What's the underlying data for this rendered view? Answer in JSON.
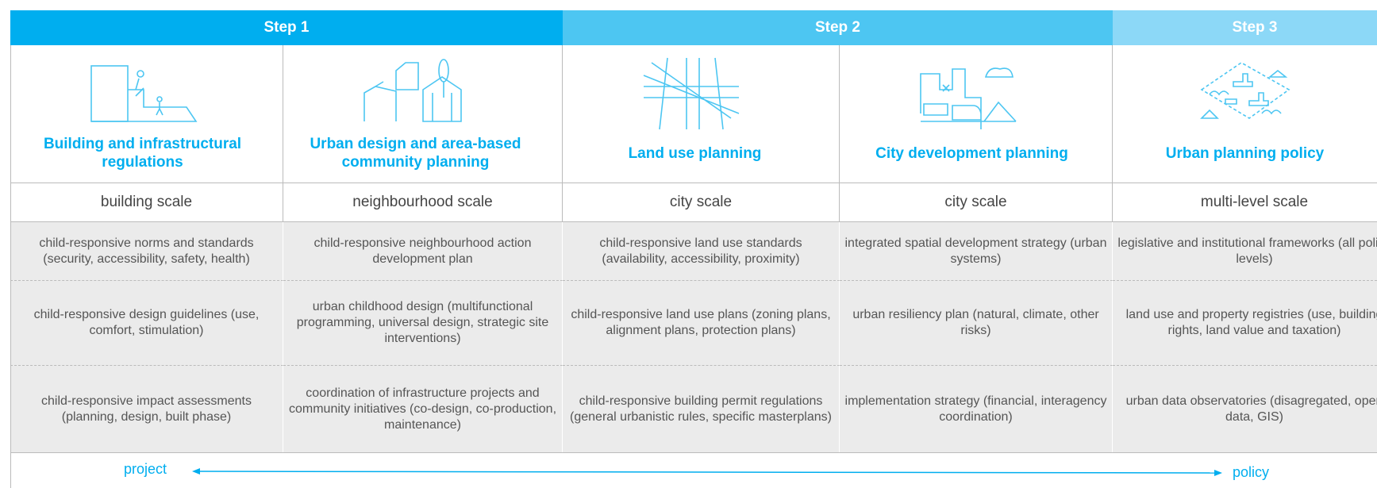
{
  "steps": [
    {
      "label": "Step 1",
      "color": "#00aeef"
    },
    {
      "label": "Step 2",
      "color": "#4dc6f2"
    },
    {
      "label": "Step 3",
      "color": "#8cd8f7"
    }
  ],
  "columns": [
    {
      "step": 0,
      "title": "Building and infrastructural regulations",
      "scale": "building scale",
      "items": [
        "child-responsive norms and standards (security, accessibility, safety, health)",
        "child-responsive design guidelines (use, comfort, stimulation)",
        "child-responsive impact assessments (planning, design, built phase)"
      ]
    },
    {
      "step": 0,
      "title": "Urban design and area-based community planning",
      "scale": "neighbourhood scale",
      "items": [
        "child-responsive neighbourhood action development plan",
        "urban childhood design (multifunctional programming, universal design, strategic site interventions)",
        "coordination of infrastructure projects and community initiatives (co-design, co-production, maintenance)"
      ]
    },
    {
      "step": 1,
      "title": "Land use planning",
      "scale": "city scale",
      "items": [
        "child-responsive land use standards (availability, accessibility, proximity)",
        "child-responsive land use plans (zoning plans, alignment plans, protection plans)",
        "child-responsive building permit regulations (general urbanistic rules, specific masterplans)"
      ]
    },
    {
      "step": 1,
      "title": "City development planning",
      "scale": "city scale",
      "items": [
        "integrated spatial development strategy (urban systems)",
        "urban resiliency plan (natural, climate, other risks)",
        "implementation strategy (financial, interagency coordination)"
      ]
    },
    {
      "step": 2,
      "title": "Urban planning policy",
      "scale": "multi-level scale",
      "items": [
        "legislative and institutional frameworks (all policy levels)",
        "land use and property registries (use, building rights, land value and taxation)",
        "urban data observatories (disagregated, open data, GIS)"
      ]
    }
  ],
  "axis": {
    "left": "project",
    "right": "policy"
  }
}
